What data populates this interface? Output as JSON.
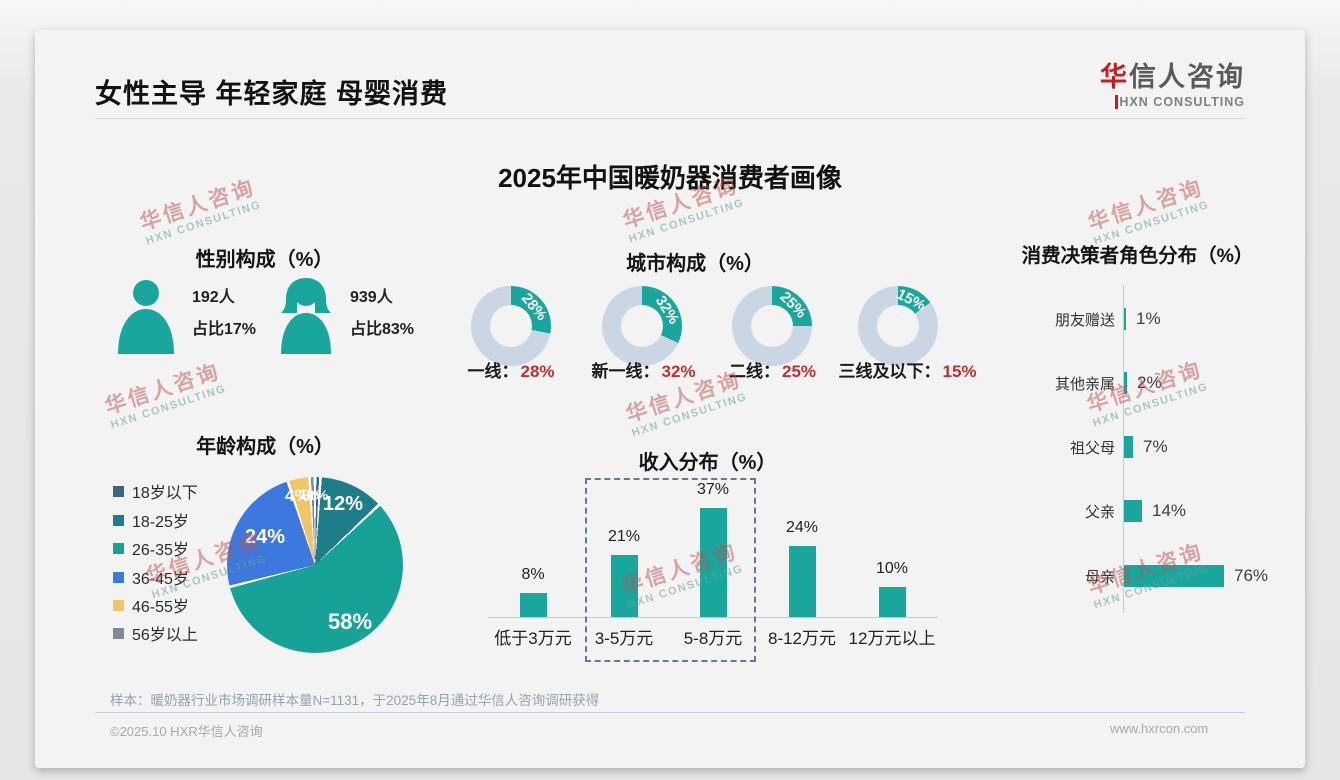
{
  "header": {
    "title": "女性主导 年轻家庭 母婴消费",
    "logo_cn_first": "华",
    "logo_cn_rest": "信人咨询",
    "logo_en_h": "H",
    "logo_en_rest": "XN CONSULTING"
  },
  "main_title": "2025年中国暖奶器消费者画像",
  "watermark": {
    "line1": "华信人咨询",
    "line2": "HXN CONSULTING"
  },
  "gender": {
    "title": "性别构成（%）",
    "male": {
      "count": "192人",
      "share": "占比17%"
    },
    "female": {
      "count": "939人",
      "share": "占比83%"
    }
  },
  "city": {
    "title": "城市构成（%）",
    "items": [
      {
        "label": "一线：",
        "pct": "28%"
      },
      {
        "label": "新一线：",
        "pct": "32%"
      },
      {
        "label": "二线：",
        "pct": "25%"
      },
      {
        "label": "三线及以下：",
        "pct": "15%"
      }
    ]
  },
  "decision": {
    "title": "消费决策者角色分布（%）",
    "items": [
      {
        "label": "朋友赠送",
        "pct": "1%"
      },
      {
        "label": "其他亲属",
        "pct": "2%"
      },
      {
        "label": "祖父母",
        "pct": "7%"
      },
      {
        "label": "父亲",
        "pct": "14%"
      },
      {
        "label": "母亲",
        "pct": "76%"
      }
    ]
  },
  "age": {
    "title": "年龄构成（%）",
    "legend": [
      {
        "label": "18岁以下"
      },
      {
        "label": "18-25岁"
      },
      {
        "label": "26-35岁"
      },
      {
        "label": "36-45岁"
      },
      {
        "label": "46-55岁"
      },
      {
        "label": "56岁以上"
      }
    ],
    "slice_labels": [
      "1%",
      "12%",
      "58%",
      "24%",
      "4%",
      "1%"
    ]
  },
  "income": {
    "title": "收入分布（%）",
    "items": [
      {
        "label": "低于3万元",
        "pct": "8%"
      },
      {
        "label": "3-5万元",
        "pct": "21%"
      },
      {
        "label": "5-8万元",
        "pct": "37%"
      },
      {
        "label": "8-12万元",
        "pct": "24%"
      },
      {
        "label": "12万元以上",
        "pct": "10%"
      }
    ]
  },
  "footer": {
    "sample": "样本：暖奶器行业市场调研样本量N=1131，于2025年8月通过华信人咨询调研获得",
    "copyright": "©2025.10 HXR华信人咨询",
    "website": "www.hxrcon.com"
  },
  "chart_data": [
    {
      "type": "pie",
      "variant": "donut-set",
      "title": "城市构成（%）",
      "categories": [
        "一线",
        "新一线",
        "二线",
        "三线及以下"
      ],
      "values": [
        28,
        32,
        25,
        15
      ],
      "unit": "%",
      "colors": {
        "active": "#19a69c",
        "rest": "#cad6e4"
      },
      "labels_inside": true
    },
    {
      "type": "pie",
      "title": "年龄构成（%）",
      "categories": [
        "18岁以下",
        "18-25岁",
        "26-35岁",
        "36-45岁",
        "46-55岁",
        "56岁以上"
      ],
      "values": [
        1,
        12,
        58,
        24,
        4,
        1
      ],
      "unit": "%",
      "colors": [
        "#3d6480",
        "#1f7d8a",
        "#16a296",
        "#3c78de",
        "#f2c666",
        "#7e8b96"
      ],
      "legend_position": "left"
    },
    {
      "type": "bar",
      "title": "收入分布（%）",
      "categories": [
        "低于3万元",
        "3-5万元",
        "5-8万元",
        "8-12万元",
        "12万元以上"
      ],
      "values": [
        8,
        21,
        37,
        24,
        10
      ],
      "unit": "%",
      "bar_color": "#19a69c",
      "highlight_box_categories": [
        "3-5万元",
        "5-8万元"
      ],
      "ylim": [
        0,
        40
      ]
    },
    {
      "type": "bar",
      "orientation": "horizontal",
      "title": "消费决策者角色分布（%）",
      "categories": [
        "朋友赠送",
        "其他亲属",
        "祖父母",
        "父亲",
        "母亲"
      ],
      "values": [
        1,
        2,
        7,
        14,
        76
      ],
      "unit": "%",
      "bar_color": "#19a69c"
    },
    {
      "type": "pictogram",
      "title": "性别构成（%）",
      "categories": [
        "男",
        "女"
      ],
      "counts": [
        192,
        939
      ],
      "values": [
        17,
        83
      ],
      "unit": "%",
      "icon_color": "#19a69c"
    }
  ]
}
